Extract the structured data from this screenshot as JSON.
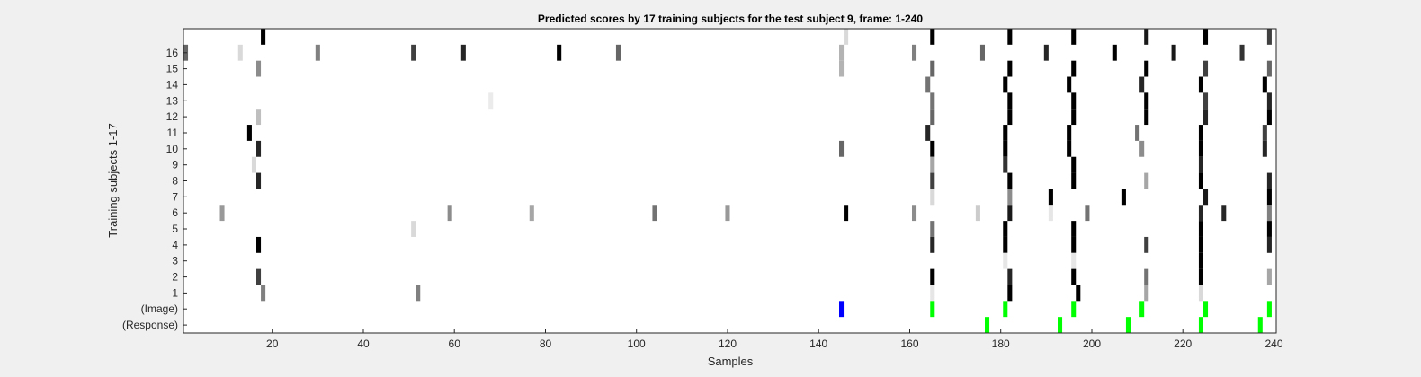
{
  "chart_data": {
    "type": "heatmap",
    "title": "Predicted scores by 17 training subjects for the test subject 9, frame: 1-240",
    "xlabel": "Samples",
    "ylabel": "Training subjects 1-17",
    "xlim": [
      1,
      240
    ],
    "x_ticks": [
      20,
      40,
      60,
      80,
      100,
      120,
      140,
      160,
      180,
      200,
      220,
      240
    ],
    "row_labels": [
      "",
      "16",
      "15",
      "14",
      "13",
      "12",
      "11",
      "10",
      "9",
      "8",
      "7",
      "6",
      "5",
      "4",
      "3",
      "2",
      "1",
      "(Image)",
      "(Response)"
    ],
    "grid": false,
    "colormap": "gray (white = 0, black = 1)",
    "colors": {
      "image_bright": "#00ff00",
      "image_blue": "#0000ff",
      "response": "#00ff00"
    },
    "rows": [
      {
        "row": 0,
        "cells": [
          [
            18,
            1.0
          ],
          [
            146,
            0.15
          ],
          [
            165,
            1.0
          ],
          [
            182,
            1.0
          ],
          [
            196,
            1.0
          ],
          [
            212,
            0.9
          ],
          [
            225,
            1.0
          ],
          [
            239,
            0.75
          ]
        ]
      },
      {
        "row": 1,
        "cells": [
          [
            1,
            0.6
          ],
          [
            13,
            0.15
          ],
          [
            30,
            0.5
          ],
          [
            51,
            0.75
          ],
          [
            62,
            0.85
          ],
          [
            83,
            1.0
          ],
          [
            96,
            0.6
          ],
          [
            145,
            0.3
          ],
          [
            161,
            0.5
          ],
          [
            176,
            0.6
          ],
          [
            190,
            0.85
          ],
          [
            205,
            1.0
          ],
          [
            218,
            0.9
          ],
          [
            233,
            0.8
          ]
        ]
      },
      {
        "row": 2,
        "cells": [
          [
            17,
            0.45
          ],
          [
            145,
            0.3
          ],
          [
            165,
            0.6
          ],
          [
            182,
            1.0
          ],
          [
            196,
            1.0
          ],
          [
            212,
            1.0
          ],
          [
            225,
            0.75
          ],
          [
            239,
            0.6
          ]
        ]
      },
      {
        "row": 3,
        "cells": [
          [
            164,
            0.55
          ],
          [
            181,
            1.0
          ],
          [
            195,
            1.0
          ],
          [
            211,
            0.85
          ],
          [
            224,
            1.0
          ],
          [
            238,
            1.0
          ]
        ]
      },
      {
        "row": 4,
        "cells": [
          [
            68,
            0.08
          ],
          [
            165,
            0.55
          ],
          [
            182,
            1.0
          ],
          [
            196,
            1.0
          ],
          [
            212,
            1.0
          ],
          [
            225,
            0.75
          ],
          [
            239,
            0.85
          ]
        ]
      },
      {
        "row": 5,
        "cells": [
          [
            17,
            0.25
          ],
          [
            165,
            0.6
          ],
          [
            182,
            1.0
          ],
          [
            196,
            1.0
          ],
          [
            212,
            1.0
          ],
          [
            225,
            0.85
          ],
          [
            239,
            1.0
          ]
        ]
      },
      {
        "row": 6,
        "cells": [
          [
            15,
            1.0
          ],
          [
            164,
            0.85
          ],
          [
            181,
            1.0
          ],
          [
            195,
            1.0
          ],
          [
            210,
            0.55
          ],
          [
            224,
            1.0
          ],
          [
            238,
            0.75
          ]
        ]
      },
      {
        "row": 7,
        "cells": [
          [
            17,
            0.85
          ],
          [
            145,
            0.6
          ],
          [
            165,
            1.0
          ],
          [
            181,
            1.0
          ],
          [
            195,
            1.0
          ],
          [
            211,
            0.45
          ],
          [
            224,
            1.0
          ],
          [
            238,
            0.85
          ]
        ]
      },
      {
        "row": 8,
        "cells": [
          [
            16,
            0.15
          ],
          [
            165,
            0.35
          ],
          [
            181,
            0.8
          ],
          [
            196,
            1.0
          ],
          [
            224,
            0.85
          ]
        ]
      },
      {
        "row": 9,
        "cells": [
          [
            17,
            0.85
          ],
          [
            165,
            0.75
          ],
          [
            182,
            1.0
          ],
          [
            196,
            1.0
          ],
          [
            212,
            0.35
          ],
          [
            224,
            1.0
          ],
          [
            239,
            0.85
          ]
        ]
      },
      {
        "row": 10,
        "cells": [
          [
            165,
            0.15
          ],
          [
            182,
            0.45
          ],
          [
            191,
            1.0
          ],
          [
            207,
            1.0
          ],
          [
            225,
            0.9
          ],
          [
            239,
            1.0
          ]
        ]
      },
      {
        "row": 11,
        "cells": [
          [
            9,
            0.4
          ],
          [
            59,
            0.45
          ],
          [
            77,
            0.35
          ],
          [
            104,
            0.55
          ],
          [
            120,
            0.4
          ],
          [
            146,
            1.0
          ],
          [
            161,
            0.45
          ],
          [
            175,
            0.2
          ],
          [
            182,
            0.9
          ],
          [
            191,
            0.1
          ],
          [
            199,
            0.55
          ],
          [
            224,
            0.85
          ],
          [
            229,
            0.85
          ],
          [
            239,
            0.5
          ]
        ]
      },
      {
        "row": 12,
        "cells": [
          [
            51,
            0.15
          ],
          [
            165,
            0.55
          ],
          [
            181,
            1.0
          ],
          [
            196,
            1.0
          ],
          [
            224,
            1.0
          ],
          [
            239,
            1.0
          ]
        ]
      },
      {
        "row": 13,
        "cells": [
          [
            17,
            1.0
          ],
          [
            165,
            0.85
          ],
          [
            181,
            1.0
          ],
          [
            196,
            1.0
          ],
          [
            212,
            0.75
          ],
          [
            224,
            1.0
          ],
          [
            239,
            0.85
          ]
        ]
      },
      {
        "row": 14,
        "cells": [
          [
            181,
            0.1
          ],
          [
            196,
            0.1
          ],
          [
            224,
            1.0
          ]
        ]
      },
      {
        "row": 15,
        "cells": [
          [
            17,
            0.75
          ],
          [
            165,
            1.0
          ],
          [
            182,
            0.85
          ],
          [
            196,
            1.0
          ],
          [
            212,
            0.55
          ],
          [
            224,
            1.0
          ],
          [
            239,
            0.35
          ]
        ]
      },
      {
        "row": 16,
        "cells": [
          [
            18,
            0.5
          ],
          [
            52,
            0.5
          ],
          [
            165,
            0.1
          ],
          [
            182,
            1.0
          ],
          [
            197,
            1.0
          ],
          [
            212,
            0.35
          ],
          [
            224,
            0.15
          ]
        ]
      },
      {
        "row": 17,
        "cells": [
          [
            145,
            0
          ],
          [
            165,
            0
          ],
          [
            181,
            0
          ],
          [
            196,
            0
          ],
          [
            211,
            0
          ],
          [
            225,
            0
          ],
          [
            239,
            0
          ]
        ]
      },
      {
        "row": 18,
        "cells": [
          [
            177,
            0
          ],
          [
            193,
            0
          ],
          [
            208,
            0
          ],
          [
            224,
            0
          ],
          [
            237,
            0
          ]
        ]
      }
    ],
    "marker_colors": {
      "17": [
        "image_blue",
        "image_bright",
        "image_bright",
        "image_bright",
        "image_bright",
        "image_bright",
        "image_bright"
      ],
      "18": [
        "response",
        "response",
        "response",
        "response",
        "response"
      ]
    }
  }
}
